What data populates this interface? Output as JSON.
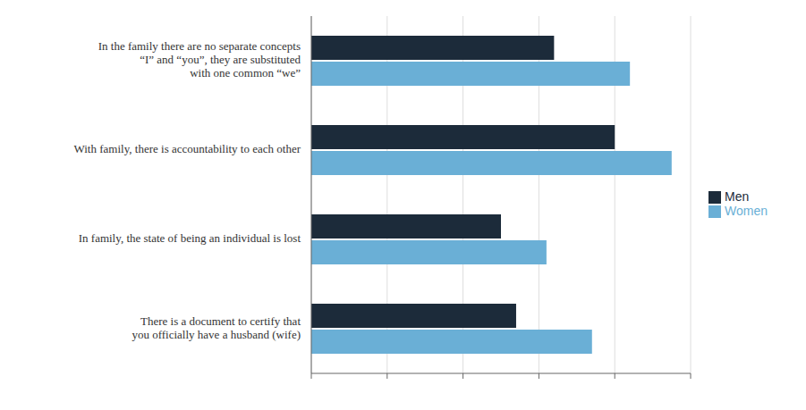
{
  "chart_data": {
    "type": "bar",
    "orientation": "horizontal",
    "categories": [
      "In the family there are no separate concepts\n“I” and “you”, they are substituted\nwith one common “we”",
      "With family, there is accountability to each other",
      "In family, the state of being an individual is lost",
      "There is a document to certify that\nyou officially have a husband (wife)"
    ],
    "series": [
      {
        "name": "Men",
        "color": "#1c2b3a",
        "values": [
          3.2,
          4.0,
          2.5,
          2.7
        ]
      },
      {
        "name": "Women",
        "color": "#6aafd6",
        "values": [
          4.2,
          4.75,
          3.1,
          3.7
        ]
      }
    ],
    "xlim": [
      0,
      5
    ],
    "xticks": [
      0,
      1,
      2,
      3,
      4,
      5
    ],
    "grid": true,
    "legend": "right",
    "tick_labels": "y"
  }
}
